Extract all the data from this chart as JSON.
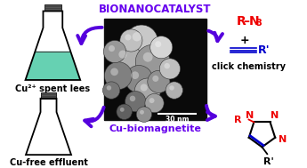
{
  "bg_color": "#ffffff",
  "bionanocatalyst_text": "BIONANOCATALYST",
  "bionanocatalyst_color": "#6600EE",
  "cu_biomagnetite_text": "Cu-biomagnetite",
  "cu_biomagnetite_color": "#6600EE",
  "cu2_spent_lees_text": "Cu²⁺ spent lees",
  "cu_free_effluent_text": "Cu-free effluent",
  "label_color": "#000000",
  "arrow_color": "#5500DD",
  "flask_liquid_color": "#55CCAA",
  "flask_outline": "#000000",
  "scale_bar_text": "30 nm",
  "red_color": "#EE0000",
  "blue_color": "#0000CC",
  "black_color": "#000000",
  "figsize": [
    3.45,
    1.89
  ],
  "dpi": 100
}
